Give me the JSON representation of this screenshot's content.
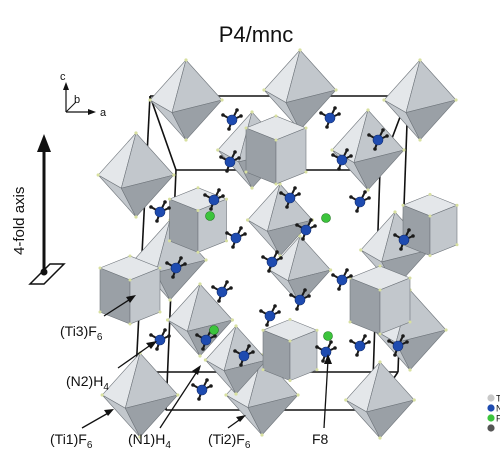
{
  "title": "P4/mnc",
  "axes_indicator": {
    "c": "c",
    "b": "b",
    "a": "a"
  },
  "fourfold_axis_label": "4-fold axis",
  "labels": {
    "ti3f6": {
      "main": "(Ti3)F",
      "sub": "6"
    },
    "n2h4": {
      "main": "(N2)H",
      "sub": "4"
    },
    "ti1f6": {
      "main": "(Ti1)F",
      "sub": "6"
    },
    "n1h4": {
      "main": "(N1)H",
      "sub": "4"
    },
    "ti2f6": {
      "main": "(Ti2)F",
      "sub": "6"
    },
    "f8": "F8"
  },
  "legend": [
    {
      "text": "T",
      "color": "#c8c8c8"
    },
    {
      "text": "N",
      "color": "#1e4bb0"
    },
    {
      "text": "F",
      "color": "#3cc43c"
    },
    {
      "text": "",
      "color": "#555555"
    }
  ],
  "colors": {
    "polyhedron_light": "#e4e7ea",
    "polyhedron_mid": "#c2c7cc",
    "polyhedron_dark": "#9aa0a6",
    "edge": "#6f757b",
    "nitrogen": "#1e4bb0",
    "hydrogen": "#1a1a1a",
    "fluorine": "#3cc43c",
    "cell": "#111111"
  }
}
